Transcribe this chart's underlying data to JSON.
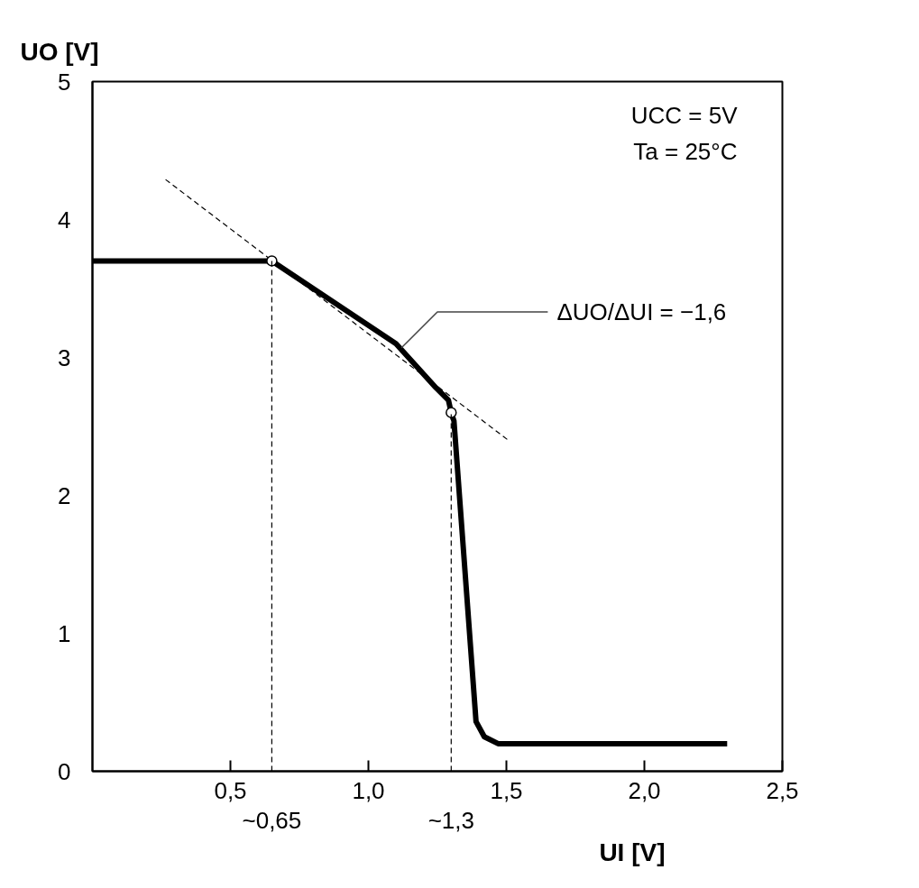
{
  "chart_data": {
    "type": "line",
    "xlabel": "UI [V]",
    "ylabel": "UO [V]",
    "xlim": [
      0,
      2.5
    ],
    "ylim": [
      0,
      5
    ],
    "xticks": [
      {
        "value": 0.5,
        "label": "0,5"
      },
      {
        "value": 1.0,
        "label": "1,0"
      },
      {
        "value": 1.5,
        "label": "1,5"
      },
      {
        "value": 2.0,
        "label": "2,0"
      },
      {
        "value": 2.5,
        "label": "2,5"
      }
    ],
    "yticks": [
      0,
      1,
      2,
      3,
      4,
      5
    ],
    "grid": false,
    "series": [
      {
        "color": "#000000",
        "x": [
          0,
          0.62,
          0.65,
          1.1,
          1.245,
          1.29,
          1.3,
          1.31,
          1.39,
          1.42,
          1.47,
          2.3
        ],
        "values": [
          3.7,
          3.7,
          3.7,
          3.1,
          2.78,
          2.69,
          2.6,
          2.54,
          0.36,
          0.25,
          0.2,
          0.2
        ],
        "line_style": "solid"
      },
      {
        "color": "#000000",
        "x": [
          0.265,
          1.507
        ],
        "values": [
          4.29,
          2.4
        ],
        "line_style": "dashed"
      },
      {
        "type": "scatter",
        "color": "#000000",
        "x": [
          0.65,
          1.3
        ],
        "values": [
          3.7,
          2.6
        ],
        "marker": "circle"
      }
    ],
    "ref_lines": [
      {
        "axis": "x",
        "value": 0.65,
        "label": "~0,65",
        "line_style": "dashed"
      },
      {
        "axis": "x",
        "value": 1.3,
        "label": "~1,3",
        "line_style": "dashed"
      }
    ],
    "annotations": [
      "UCC = 5V",
      "Ta = 25°C",
      {
        "text": "ΔUO/ΔUI = −1,6",
        "x": 1.12,
        "y": 3.07
      }
    ]
  }
}
